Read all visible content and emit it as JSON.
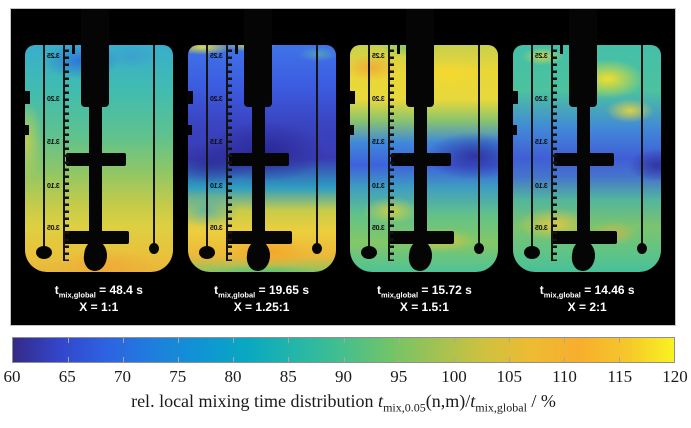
{
  "figure": {
    "background": "#ffffff",
    "panel_background": "#000000",
    "label_color": "#ffffff"
  },
  "panels": [
    {
      "variant": "v1",
      "t_symbol": "t",
      "t_subscript": "mix,global",
      "value": "= 48.4 s",
      "ratio": "X = 1:1"
    },
    {
      "variant": "v2",
      "t_symbol": "t",
      "t_subscript": "mix,global",
      "value": "= 19.65 s",
      "ratio": "X = 1.25:1"
    },
    {
      "variant": "v3",
      "t_symbol": "t",
      "t_subscript": "mix,global",
      "value": "= 15.72 s",
      "ratio": "X = 1.5:1"
    },
    {
      "variant": "v4",
      "t_symbol": "t",
      "t_subscript": "mix,global",
      "value": "= 14.46 s",
      "ratio": "X = 2:1"
    }
  ],
  "vessel": {
    "ruler_labels": [
      "3.25",
      "3.20",
      "3.15",
      "3.10",
      "3.05"
    ]
  },
  "colorbar": {
    "min": 60,
    "max": 120,
    "ticks": [
      "60",
      "65",
      "70",
      "75",
      "80",
      "85",
      "90",
      "95",
      "100",
      "105",
      "110",
      "115",
      "120"
    ],
    "gradient": [
      "#352a87",
      "#3346cb",
      "#2d63e2",
      "#1e7fdc",
      "#0f95d4",
      "#09a9c0",
      "#25b6a8",
      "#45bf8e",
      "#71c468",
      "#a3c252",
      "#cfc13f",
      "#eebb32",
      "#f7ae2d",
      "#f6c72a",
      "#f8f221"
    ],
    "caption": {
      "prefix": "rel. local mixing time distribution ",
      "t1": "t",
      "t1_sub": "mix,0.05",
      "mid": "(n,m)/",
      "t2": "t",
      "t2_sub": "mix,global",
      "suffix": " / %"
    }
  },
  "chart_data": {
    "type": "heatmap",
    "title": "",
    "panels": [
      {
        "t_mix_global_s": 48.4,
        "ratio_X": "1:1"
      },
      {
        "t_mix_global_s": 19.65,
        "ratio_X": "1.25:1"
      },
      {
        "t_mix_global_s": 15.72,
        "ratio_X": "1.5:1"
      },
      {
        "t_mix_global_s": 14.46,
        "ratio_X": "2:1"
      }
    ],
    "colorbar": {
      "label": "rel. local mixing time distribution t_mix,0.05(n,m)/t_mix,global / %",
      "range": [
        60,
        120
      ],
      "tick_step": 5,
      "colormap": "parula",
      "orientation": "horizontal"
    }
  }
}
